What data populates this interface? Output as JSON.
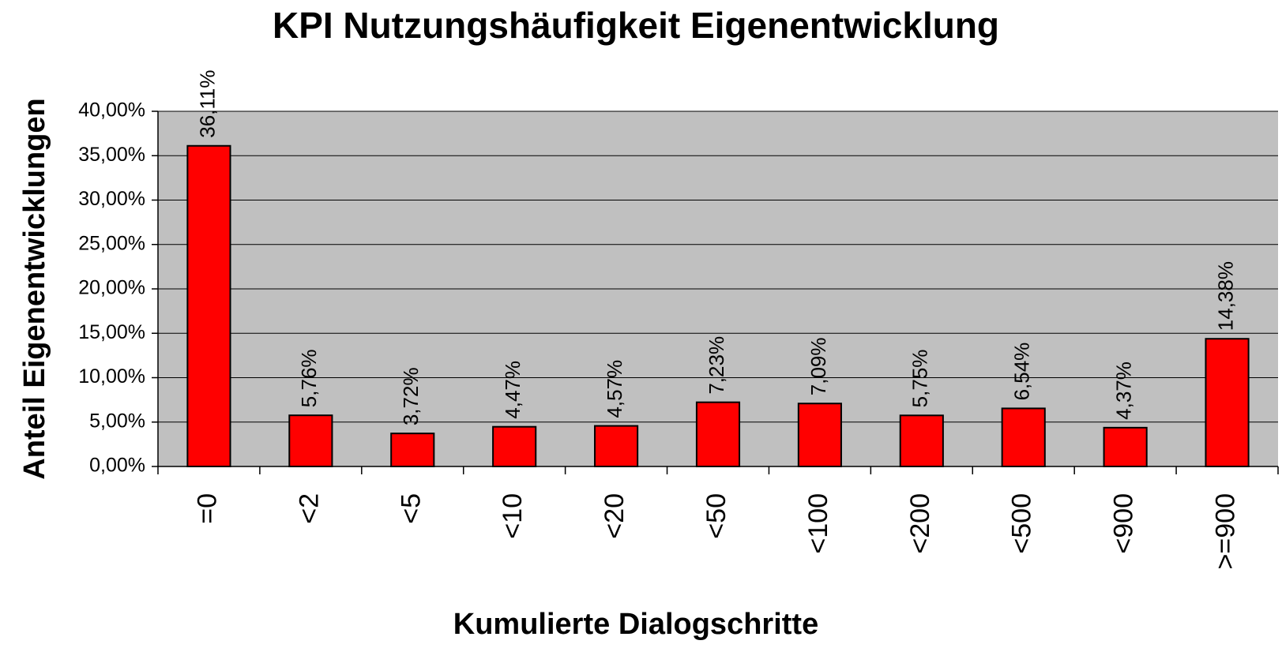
{
  "chart_data": {
    "type": "bar",
    "title": "KPI Nutzungshäufigkeit Eigenentwicklung",
    "xlabel": "Kumulierte Dialogschritte",
    "ylabel": "Anteil Eigenentwicklungen",
    "categories": [
      "=0",
      "<2",
      "<5",
      "<10",
      "<20",
      "<50",
      "<100",
      "<200",
      "<500",
      "<900",
      ">=900"
    ],
    "values": [
      36.11,
      5.76,
      3.72,
      4.47,
      4.57,
      7.23,
      7.09,
      5.75,
      6.54,
      4.37,
      14.38
    ],
    "value_labels": [
      "36,11%",
      "5,76%",
      "3,72%",
      "4,47%",
      "4,57%",
      "7,23%",
      "7,09%",
      "5,75%",
      "6,54%",
      "4,37%",
      "14,38%"
    ],
    "color": "#ff0000",
    "ylim": [
      0,
      40
    ],
    "yticks": [
      {
        "value": 0,
        "label": "0,00%"
      },
      {
        "value": 5,
        "label": "5,00%"
      },
      {
        "value": 10,
        "label": "10,00%"
      },
      {
        "value": 15,
        "label": "15,00%"
      },
      {
        "value": 20,
        "label": "20,00%"
      },
      {
        "value": 25,
        "label": "25,00%"
      },
      {
        "value": 30,
        "label": "30,00%"
      },
      {
        "value": 35,
        "label": "35,00%"
      },
      {
        "value": 40,
        "label": "40,00%"
      }
    ],
    "grid": true
  }
}
